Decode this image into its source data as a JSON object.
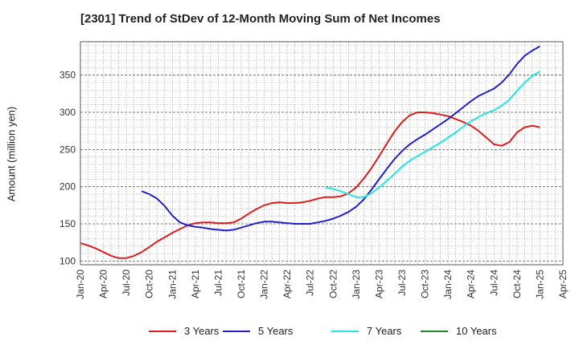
{
  "chart_data": {
    "type": "line",
    "title": "[2301]  Trend of StDev of 12-Month Moving Sum of Net Incomes",
    "xlabel": "",
    "ylabel": "Amount (million yen)",
    "x_tick_labels": [
      "Jan-20",
      "Apr-20",
      "Jul-20",
      "Oct-20",
      "Jan-21",
      "Apr-21",
      "Jul-21",
      "Oct-21",
      "Jan-22",
      "Apr-22",
      "Jul-22",
      "Oct-22",
      "Jan-23",
      "Apr-23",
      "Jul-23",
      "Oct-23",
      "Jan-24",
      "Apr-24",
      "Jul-24",
      "Oct-24",
      "Jan-25",
      "Apr-25"
    ],
    "y_ticks": [
      100,
      150,
      200,
      250,
      300,
      350
    ],
    "ylim": [
      95,
      395
    ],
    "grid": true,
    "legend_position": "bottom",
    "series": [
      {
        "name": "3 Years",
        "color": "#e31a1c",
        "points": [
          [
            "2020-01",
            124
          ],
          [
            "2020-02",
            121
          ],
          [
            "2020-03",
            117
          ],
          [
            "2020-04",
            112
          ],
          [
            "2020-05",
            107
          ],
          [
            "2020-06",
            104
          ],
          [
            "2020-07",
            104
          ],
          [
            "2020-08",
            107
          ],
          [
            "2020-09",
            112
          ],
          [
            "2020-10",
            119
          ],
          [
            "2020-11",
            126
          ],
          [
            "2020-12",
            132
          ],
          [
            "2021-01",
            138
          ],
          [
            "2021-02",
            143
          ],
          [
            "2021-03",
            148
          ],
          [
            "2021-04",
            151
          ],
          [
            "2021-05",
            152
          ],
          [
            "2021-06",
            152
          ],
          [
            "2021-07",
            151
          ],
          [
            "2021-08",
            151
          ],
          [
            "2021-09",
            152
          ],
          [
            "2021-10",
            157
          ],
          [
            "2021-11",
            164
          ],
          [
            "2021-12",
            170
          ],
          [
            "2022-01",
            175
          ],
          [
            "2022-02",
            178
          ],
          [
            "2022-03",
            179
          ],
          [
            "2022-04",
            178
          ],
          [
            "2022-05",
            178
          ],
          [
            "2022-06",
            179
          ],
          [
            "2022-07",
            181
          ],
          [
            "2022-08",
            184
          ],
          [
            "2022-09",
            186
          ],
          [
            "2022-10",
            186
          ],
          [
            "2022-11",
            187
          ],
          [
            "2022-12",
            191
          ],
          [
            "2023-01",
            199
          ],
          [
            "2023-02",
            211
          ],
          [
            "2023-03",
            225
          ],
          [
            "2023-04",
            241
          ],
          [
            "2023-05",
            258
          ],
          [
            "2023-06",
            274
          ],
          [
            "2023-07",
            287
          ],
          [
            "2023-08",
            296
          ],
          [
            "2023-09",
            300
          ],
          [
            "2023-10",
            300
          ],
          [
            "2023-11",
            299
          ],
          [
            "2023-12",
            297
          ],
          [
            "2024-01",
            295
          ],
          [
            "2024-02",
            291
          ],
          [
            "2024-03",
            287
          ],
          [
            "2024-04",
            282
          ],
          [
            "2024-05",
            275
          ],
          [
            "2024-06",
            266
          ],
          [
            "2024-07",
            257
          ],
          [
            "2024-08",
            255
          ],
          [
            "2024-09",
            260
          ],
          [
            "2024-10",
            273
          ],
          [
            "2024-11",
            280
          ],
          [
            "2024-12",
            282
          ],
          [
            "2025-01",
            280
          ]
        ]
      },
      {
        "name": "5 Years",
        "color": "#1f1fd0",
        "points": [
          [
            "2020-09",
            194
          ],
          [
            "2020-10",
            190
          ],
          [
            "2020-11",
            184
          ],
          [
            "2020-12",
            174
          ],
          [
            "2021-01",
            161
          ],
          [
            "2021-02",
            152
          ],
          [
            "2021-03",
            148
          ],
          [
            "2021-04",
            146
          ],
          [
            "2021-05",
            145
          ],
          [
            "2021-06",
            143
          ],
          [
            "2021-07",
            142
          ],
          [
            "2021-08",
            141
          ],
          [
            "2021-09",
            142
          ],
          [
            "2021-10",
            145
          ],
          [
            "2021-11",
            148
          ],
          [
            "2021-12",
            151
          ],
          [
            "2022-01",
            153
          ],
          [
            "2022-02",
            153
          ],
          [
            "2022-03",
            152
          ],
          [
            "2022-04",
            151
          ],
          [
            "2022-05",
            150
          ],
          [
            "2022-06",
            150
          ],
          [
            "2022-07",
            150
          ],
          [
            "2022-08",
            152
          ],
          [
            "2022-09",
            154
          ],
          [
            "2022-10",
            157
          ],
          [
            "2022-11",
            161
          ],
          [
            "2022-12",
            166
          ],
          [
            "2023-01",
            173
          ],
          [
            "2023-02",
            183
          ],
          [
            "2023-03",
            196
          ],
          [
            "2023-04",
            210
          ],
          [
            "2023-05",
            224
          ],
          [
            "2023-06",
            237
          ],
          [
            "2023-07",
            248
          ],
          [
            "2023-08",
            257
          ],
          [
            "2023-09",
            264
          ],
          [
            "2023-10",
            270
          ],
          [
            "2023-11",
            277
          ],
          [
            "2023-12",
            284
          ],
          [
            "2024-01",
            291
          ],
          [
            "2024-02",
            299
          ],
          [
            "2024-03",
            307
          ],
          [
            "2024-04",
            315
          ],
          [
            "2024-05",
            322
          ],
          [
            "2024-06",
            327
          ],
          [
            "2024-07",
            332
          ],
          [
            "2024-08",
            340
          ],
          [
            "2024-09",
            351
          ],
          [
            "2024-10",
            365
          ],
          [
            "2024-11",
            376
          ],
          [
            "2024-12",
            383
          ],
          [
            "2025-01",
            389
          ]
        ]
      },
      {
        "name": "7 Years",
        "color": "#22e5e5",
        "points": [
          [
            "2022-09",
            199
          ],
          [
            "2022-10",
            197
          ],
          [
            "2022-11",
            194
          ],
          [
            "2022-12",
            190
          ],
          [
            "2023-01",
            186
          ],
          [
            "2023-02",
            186
          ],
          [
            "2023-03",
            191
          ],
          [
            "2023-04",
            199
          ],
          [
            "2023-05",
            208
          ],
          [
            "2023-06",
            217
          ],
          [
            "2023-07",
            227
          ],
          [
            "2023-08",
            235
          ],
          [
            "2023-09",
            241
          ],
          [
            "2023-10",
            247
          ],
          [
            "2023-11",
            253
          ],
          [
            "2023-12",
            259
          ],
          [
            "2024-01",
            266
          ],
          [
            "2024-02",
            273
          ],
          [
            "2024-03",
            281
          ],
          [
            "2024-04",
            288
          ],
          [
            "2024-05",
            294
          ],
          [
            "2024-06",
            299
          ],
          [
            "2024-07",
            303
          ],
          [
            "2024-08",
            309
          ],
          [
            "2024-09",
            317
          ],
          [
            "2024-10",
            329
          ],
          [
            "2024-11",
            340
          ],
          [
            "2024-12",
            349
          ],
          [
            "2025-01",
            355
          ]
        ]
      },
      {
        "name": "10 Years",
        "color": "#1e8c1e",
        "points": []
      }
    ]
  }
}
